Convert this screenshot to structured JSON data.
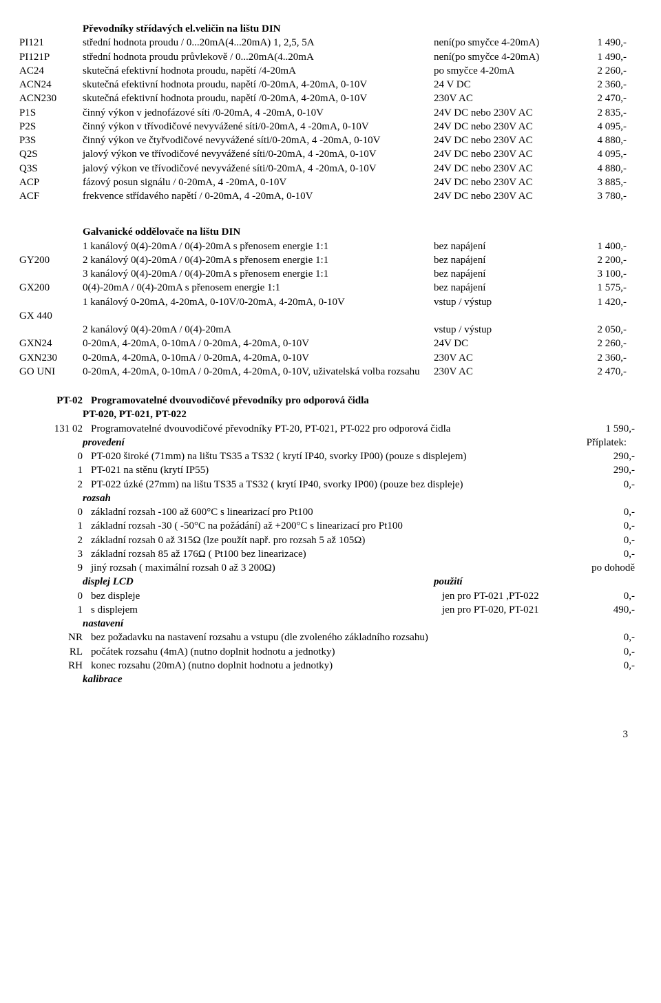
{
  "sec1": {
    "title": "Převodníky střídavých el.veličin na lištu DIN",
    "rows": [
      {
        "code": "PI121",
        "desc": "střední hodnota proudu / 0...20mA(4...20mA)   1, 2,5, 5A",
        "mid": "není(po smyčce 4-20mA)",
        "price": "1 490,-"
      },
      {
        "code": "PI121P",
        "desc": "střední hodnota proudu průvlekově / 0...20mA(4..20mA",
        "mid": "není(po smyčce 4-20mA)",
        "price": "1 490,-"
      },
      {
        "code": "AC24",
        "desc": "skutečná efektivní hodnota proudu, napětí /4-20mA",
        "mid": "po smyčce 4-20mA",
        "price": "2 260,-"
      },
      {
        "code": "ACN24",
        "desc": "skutečná efektivní hodnota proudu, napětí /0-20mA, 4-20mA, 0-10V",
        "mid": "24 V DC",
        "price": "2 360,-"
      },
      {
        "code": "ACN230",
        "desc": "skutečná efektivní hodnota proudu, napětí /0-20mA, 4-20mA, 0-10V",
        "mid": "230V AC",
        "price": "2 470,-"
      },
      {
        "code": "P1S",
        "desc": "činný výkon v jednofázové síti /0-20mA, 4 -20mA, 0-10V",
        "mid": "24V DC nebo 230V AC",
        "price": "2 835,-"
      },
      {
        "code": "P2S",
        "desc": "činný výkon v třívodičové nevyvážené síti/0-20mA, 4 -20mA, 0-10V",
        "mid": "24V DC nebo 230V AC",
        "price": "4 095,-"
      },
      {
        "code": "P3S",
        "desc": "činný výkon ve čtyřvodičové nevyvážené síti/0-20mA, 4 -20mA, 0-10V",
        "mid": "24V DC nebo 230V AC",
        "price": "4 880,-"
      },
      {
        "code": "Q2S",
        "desc": "jalový výkon ve třívodičové  nevyvážené síti/0-20mA, 4 -20mA, 0-10V",
        "mid": "24V DC nebo 230V AC",
        "price": "4 095,-"
      },
      {
        "code": "Q3S",
        "desc": "jalový výkon ve třívodičové  nevyvážené síti/0-20mA, 4 -20mA, 0-10V",
        "mid": "24V DC nebo 230V AC",
        "price": "4 880,-"
      },
      {
        "code": "ACP",
        "desc": "fázový posun signálu / 0-20mA, 4 -20mA, 0-10V",
        "mid": "24V DC nebo 230V AC",
        "price": "3 885,-"
      },
      {
        "code": "ACF",
        "desc": "frekvence střídavého napětí / 0-20mA, 4 -20mA, 0-10V",
        "mid": "24V DC nebo 230V AC",
        "price": "3 780,-"
      }
    ]
  },
  "sec2": {
    "title": "Galvanické oddělovače na lištu DIN",
    "rows": [
      {
        "code": "",
        "desc": "1 kanálový 0(4)-20mA / 0(4)-20mA  s přenosem energie 1:1",
        "mid": "bez napájení",
        "price": "1 400,-"
      },
      {
        "code": "GY200",
        "desc": "2 kanálový 0(4)-20mA / 0(4)-20mA  s přenosem energie 1:1",
        "mid": "bez napájení",
        "price": "2 200,-"
      },
      {
        "code": "",
        "desc": "3 kanálový 0(4)-20mA / 0(4)-20mA  s přenosem energie 1:1",
        "mid": "bez napájení",
        "price": "3 100,-"
      },
      {
        "code": "GX200",
        "desc": "0(4)-20mA / 0(4)-20mA s přenosem energie 1:1",
        "mid": "bez napájení",
        "price": "1 575,-"
      },
      {
        "code": "",
        "desc": "1 kanálový 0-20mA, 4-20mA, 0-10V/0-20mA, 4-20mA, 0-10V",
        "mid": "vstup / výstup",
        "price": "1 420,-"
      },
      {
        "code": "GX 440",
        "desc": "",
        "mid": "",
        "price": ""
      },
      {
        "code": "",
        "desc": "2 kanálový 0(4)-20mA / 0(4)-20mA",
        "mid": "vstup / výstup",
        "price": "2 050,-"
      },
      {
        "code": "GXN24",
        "desc": "0-20mA, 4-20mA, 0-10mA / 0-20mA, 4-20mA, 0-10V",
        "mid": "24V DC",
        "price": "2 260,-"
      },
      {
        "code": "GXN230",
        "desc": "0-20mA, 4-20mA, 0-10mA / 0-20mA, 4-20mA, 0-10V",
        "mid": "230V AC",
        "price": "2 360,-"
      },
      {
        "code": "GO UNI",
        "desc": "0-20mA, 4-20mA, 0-10mA / 0-20mA, 4-20mA, 0-10V, uživatelská volba rozsahu",
        "mid": "230V AC",
        "price": "2 470,-"
      }
    ]
  },
  "sec3": {
    "head1": {
      "code": "PT-02",
      "desc": "Programovatelné dvouvodičové převodníky pro odporová čidla"
    },
    "head2": {
      "desc": "PT-020, PT-021, PT-022"
    },
    "mainrow": {
      "code": "131 02",
      "desc": "Programovatelné dvouvodičové převodníky PT-20, PT-021, PT-022 pro odporová čidla",
      "price": "1 590,-"
    },
    "groups": [
      {
        "label": "provedení",
        "priceLabel": "Příplatek:",
        "rows": [
          {
            "code": "0",
            "desc": "PT-020 široké (71mm) na lištu TS35 a TS32 ( krytí IP40, svorky IP00) (pouze s displejem)",
            "price": "290,-"
          },
          {
            "code": "1",
            "desc": "PT-021 na stěnu (krytí IP55)",
            "price": "290,-"
          },
          {
            "code": "2",
            "desc": "PT-022 úzké (27mm) na lištu TS35 a TS32 ( krytí IP40, svorky IP00) (pouze bez displeje)",
            "price": "0,-"
          }
        ]
      },
      {
        "label": "rozsah",
        "rows": [
          {
            "code": "0",
            "desc": "základní rozsah -100 až 600°C s linearizací pro Pt100",
            "price": "0,-"
          },
          {
            "code": "1",
            "desc": "základní rozsah -30 ( -50°C na požádání) až +200°C s linearizací pro Pt100",
            "price": "0,-"
          },
          {
            "code": "2",
            "desc": "základní rozsah 0 až 315Ω (lze použít např. pro rozsah 5 až 105Ω)",
            "price": "0,-"
          },
          {
            "code": "3",
            "desc": "základní rozsah 85 až 176Ω ( Pt100 bez linearizace)",
            "price": "0,-"
          },
          {
            "code": "9",
            "desc": "jiný rozsah ( maximální rozsah 0 až 3 200Ω)",
            "price": "po dohodě"
          }
        ]
      },
      {
        "label": "displej LCD",
        "midLabel": "použití",
        "rows": [
          {
            "code": "0",
            "desc": "bez displeje",
            "mid": "jen pro PT-021 ,PT-022",
            "price": "0,-"
          },
          {
            "code": "1",
            "desc": "s displejem",
            "mid": "jen pro PT-020, PT-021",
            "price": "490,-"
          }
        ]
      },
      {
        "label": "nastavení",
        "rows": [
          {
            "code": "NR",
            "desc": "bez požadavku na nastavení rozsahu a vstupu (dle zvoleného základního rozsahu)",
            "price": "0,-"
          },
          {
            "code": "RL",
            "desc": "počátek rozsahu (4mA) (nutno doplnit hodnotu a jednotky)",
            "price": "0,-"
          },
          {
            "code": "RH",
            "desc": "konec rozsahu (20mA) (nutno doplnit hodnotu a jednotky)",
            "price": "0,-"
          }
        ]
      },
      {
        "label": "kalibrace",
        "rows": []
      }
    ]
  },
  "pageNum": "3"
}
